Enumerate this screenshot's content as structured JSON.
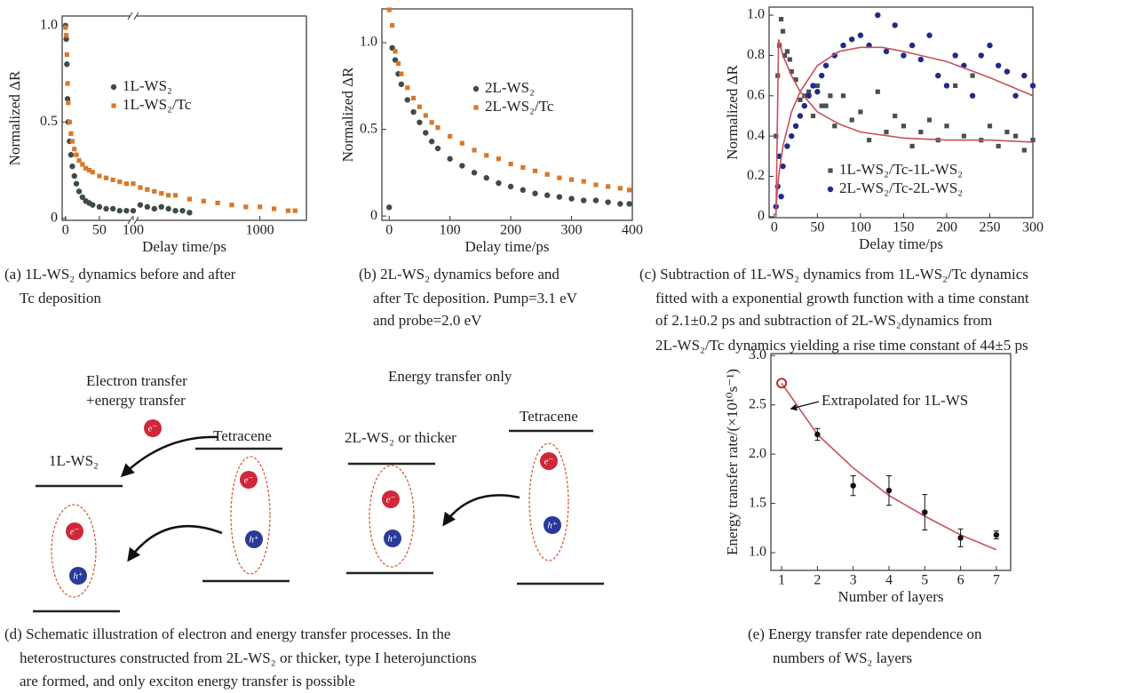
{
  "chart_data": [
    {
      "type": "scatter",
      "xlabel": "Delay time/ps",
      "ylabel": "Normalized ΔR",
      "xlim": [
        -5,
        1330
      ],
      "xbreak": 100,
      "xticks": [
        0,
        50,
        100,
        1000
      ],
      "ylim": [
        -0.01,
        1.05
      ],
      "yticks": [
        0,
        0.5,
        {
          "value": 1,
          "label": "1.0"
        }
      ],
      "legend": "center",
      "series": [
        {
          "name": "1L-WS₂",
          "color": "#3f4a4a",
          "marker": "circle",
          "x": [
            0,
            1,
            2,
            3,
            4,
            6,
            8,
            10,
            13,
            16,
            20,
            25,
            30,
            35,
            40,
            50,
            60,
            70,
            80,
            90,
            100,
            150,
            200,
            250,
            300,
            350,
            400,
            450,
            500
          ],
          "values": [
            1.0,
            0.93,
            0.8,
            0.62,
            0.5,
            0.4,
            0.33,
            0.27,
            0.22,
            0.18,
            0.14,
            0.11,
            0.09,
            0.08,
            0.07,
            0.06,
            0.05,
            0.05,
            0.04,
            0.04,
            0.04,
            0.07,
            0.06,
            0.05,
            0.06,
            0.05,
            0.04,
            0.04,
            0.03
          ]
        },
        {
          "name": "1L-WS₂/Tc",
          "color": "#d9782a",
          "marker": "square",
          "x": [
            0,
            1,
            2,
            3,
            4,
            6,
            8,
            10,
            13,
            16,
            20,
            25,
            30,
            35,
            40,
            50,
            60,
            70,
            80,
            90,
            100,
            150,
            200,
            250,
            300,
            350,
            400,
            500,
            600,
            700,
            800,
            900,
            1000,
            1100,
            1200,
            1250
          ],
          "values": [
            0.99,
            0.95,
            0.85,
            0.7,
            0.6,
            0.5,
            0.44,
            0.4,
            0.36,
            0.33,
            0.3,
            0.28,
            0.26,
            0.25,
            0.24,
            0.22,
            0.21,
            0.2,
            0.19,
            0.18,
            0.18,
            0.16,
            0.15,
            0.14,
            0.13,
            0.12,
            0.12,
            0.1,
            0.09,
            0.08,
            0.07,
            0.06,
            0.06,
            0.05,
            0.04,
            0.04
          ]
        }
      ],
      "caption": [
        "(a) 1L-WS₂ dynamics before and after",
        "Tc deposition"
      ]
    },
    {
      "type": "scatter",
      "xlabel": "Delay time/ps",
      "ylabel": "Normalized ΔR",
      "xlim": [
        -12,
        400
      ],
      "xticks": [
        0,
        100,
        200,
        300,
        400
      ],
      "ylim": [
        -0.025,
        1.195
      ],
      "yticks": [
        0,
        0.5,
        {
          "value": 1,
          "label": "1.0"
        }
      ],
      "legend": "center",
      "series": [
        {
          "name": "2L-WS₂",
          "color": "#3f4a4a",
          "marker": "circle",
          "x": [
            0,
            5,
            10,
            15,
            20,
            30,
            40,
            50,
            60,
            70,
            80,
            100,
            120,
            140,
            160,
            180,
            200,
            220,
            240,
            260,
            280,
            300,
            320,
            340,
            360,
            380,
            395
          ],
          "values": [
            0.05,
            0.97,
            0.9,
            0.82,
            0.76,
            0.67,
            0.6,
            0.54,
            0.48,
            0.43,
            0.39,
            0.33,
            0.29,
            0.25,
            0.22,
            0.19,
            0.17,
            0.15,
            0.13,
            0.12,
            0.11,
            0.1,
            0.09,
            0.09,
            0.08,
            0.07,
            0.07
          ]
        },
        {
          "name": "2L-WS₂/Tc",
          "color": "#d9782a",
          "marker": "square",
          "x": [
            0,
            5,
            10,
            15,
            20,
            30,
            40,
            50,
            60,
            70,
            80,
            100,
            120,
            140,
            160,
            180,
            200,
            220,
            240,
            260,
            280,
            300,
            320,
            340,
            360,
            380,
            395
          ],
          "values": [
            1.19,
            1.1,
            0.95,
            0.88,
            0.82,
            0.74,
            0.68,
            0.63,
            0.58,
            0.54,
            0.51,
            0.46,
            0.42,
            0.38,
            0.35,
            0.33,
            0.3,
            0.28,
            0.26,
            0.24,
            0.22,
            0.21,
            0.2,
            0.18,
            0.17,
            0.16,
            0.15
          ]
        }
      ],
      "caption": [
        "(b) 2L-WS₂ dynamics before and",
        "after Tc deposition. Pump=3.1 eV",
        "and probe=2.0 eV"
      ]
    },
    {
      "type": "scatter",
      "xlabel": "Delay time/ps",
      "ylabel": "Normalized ΔR",
      "xlim": [
        -6,
        300
      ],
      "xticks": [
        0,
        50,
        100,
        150,
        200,
        250,
        300
      ],
      "ylim": [
        -0.005,
        1.04
      ],
      "yticks": [
        0,
        0.2,
        0.4,
        0.6,
        0.8,
        {
          "value": 1,
          "label": "1.0"
        }
      ],
      "legend": "lower left",
      "series": [
        {
          "name": "1L-WS₂/Tc-1L-WS₂",
          "color": "#4a5050",
          "marker": "square",
          "x": [
            2,
            4,
            6,
            8,
            10,
            12,
            15,
            18,
            20,
            25,
            30,
            35,
            40,
            45,
            50,
            55,
            60,
            65,
            70,
            80,
            90,
            100,
            110,
            120,
            130,
            140,
            150,
            160,
            170,
            180,
            190,
            200,
            210,
            220,
            230,
            240,
            250,
            260,
            270,
            280,
            290,
            300
          ],
          "values": [
            0.4,
            0.7,
            0.85,
            0.98,
            0.92,
            0.8,
            0.82,
            0.78,
            0.72,
            0.68,
            0.58,
            0.6,
            0.62,
            0.5,
            0.65,
            0.55,
            0.55,
            0.6,
            0.45,
            0.6,
            0.48,
            0.52,
            0.38,
            0.62,
            0.42,
            0.5,
            0.45,
            0.35,
            0.42,
            0.48,
            0.38,
            0.45,
            0.65,
            0.4,
            0.7,
            0.38,
            0.45,
            0.35,
            0.42,
            0.4,
            0.33,
            0.38
          ]
        },
        {
          "name": "2L-WS₂/Tc-2L-WS₂",
          "color": "#1f2a8a",
          "marker": "circle",
          "x": [
            2,
            4,
            6,
            8,
            10,
            15,
            20,
            25,
            30,
            35,
            40,
            45,
            50,
            55,
            60,
            70,
            80,
            90,
            100,
            110,
            120,
            130,
            140,
            150,
            160,
            170,
            180,
            190,
            200,
            210,
            220,
            230,
            240,
            250,
            260,
            270,
            280,
            290,
            300
          ],
          "values": [
            0.05,
            0.15,
            0.3,
            0.1,
            0.25,
            0.35,
            0.4,
            0.45,
            0.5,
            0.55,
            0.6,
            0.65,
            0.62,
            0.7,
            0.75,
            0.8,
            0.85,
            0.88,
            0.9,
            0.85,
            1.0,
            0.82,
            0.95,
            0.8,
            0.85,
            0.78,
            0.9,
            0.7,
            0.65,
            0.8,
            0.75,
            0.6,
            0.8,
            0.85,
            0.75,
            0.72,
            0.6,
            0.7,
            0.65
          ]
        },
        {
          "color": "#c8505a",
          "marker": "line",
          "x": [
            2,
            5,
            10,
            20,
            30,
            50,
            75,
            100,
            150,
            200,
            250,
            300
          ],
          "values": [
            0.0,
            0.88,
            0.8,
            0.7,
            0.62,
            0.52,
            0.46,
            0.42,
            0.39,
            0.38,
            0.38,
            0.37
          ]
        },
        {
          "color": "#c8505a",
          "marker": "line",
          "x": [
            2,
            5,
            10,
            20,
            30,
            50,
            75,
            100,
            125,
            150,
            200,
            250,
            300
          ],
          "values": [
            0.05,
            0.2,
            0.35,
            0.52,
            0.62,
            0.75,
            0.82,
            0.84,
            0.84,
            0.82,
            0.77,
            0.69,
            0.6
          ]
        }
      ],
      "caption": [
        "(c) Subtraction of 1L-WS₂ dynamics from 1L-WS₂/Tc dynamics",
        "fitted with a exponential growth function with a time constant",
        "of 2.1±0.2 ps and subtraction of 2L-WS₂dynamics from",
        "2L-WS₂/Tc dynamics yielding a rise time constant of 44±5 ps"
      ]
    },
    {
      "type": "scatter",
      "xlabel": "Number of layers",
      "ylabel": "Energy transfer rate/(×10¹⁰s⁻¹)",
      "xlim": [
        0.7,
        7.4
      ],
      "xticks": [
        1,
        2,
        3,
        4,
        5,
        6,
        7
      ],
      "ylim": [
        0.82,
        3.02
      ],
      "yticks": [
        {
          "value": 1,
          "label": "1.0"
        },
        1.5,
        {
          "value": 2,
          "label": "2.0"
        },
        2.5,
        {
          "value": 3,
          "label": "3.0"
        }
      ],
      "annotation": "Extrapolated for 1L-WS",
      "series": [
        {
          "color": "#c8505a",
          "marker": "line",
          "x": [
            1,
            2,
            3,
            4,
            5,
            6,
            7
          ],
          "values": [
            2.72,
            2.2,
            1.86,
            1.58,
            1.37,
            1.18,
            1.03
          ]
        },
        {
          "color": "#111111",
          "marker": "circle",
          "x": [
            2,
            3,
            4,
            5,
            6,
            7
          ],
          "values": [
            2.2,
            1.68,
            1.63,
            1.41,
            1.15,
            1.18
          ],
          "errors": [
            0.06,
            0.1,
            0.15,
            0.18,
            0.09,
            0.04
          ]
        },
        {
          "color": "#c0282d",
          "marker": "hollow",
          "x": [
            1
          ],
          "values": [
            2.72
          ]
        }
      ],
      "caption": [
        "(e) Energy transfer rate dependence on",
        "numbers of WS₂ layers"
      ]
    }
  ],
  "diagram": {
    "left_title": [
      "Electron transfer",
      "+energy transfer"
    ],
    "left_material": "1L-WS₂",
    "left_donor": "Tetracene",
    "right_title": "Energy transfer only",
    "right_material": "2L-WS₂ or thicker",
    "right_donor": "Tetracene",
    "electron": "e⁻",
    "hole": "h⁺",
    "caption": [
      "(d) Schematic illustration of electron and energy transfer processes. In the",
      "heterostructures constructed from 2L-WS₂ or thicker, type I heterojunctions",
      "are formed, and only exciton energy transfer is possible"
    ]
  }
}
